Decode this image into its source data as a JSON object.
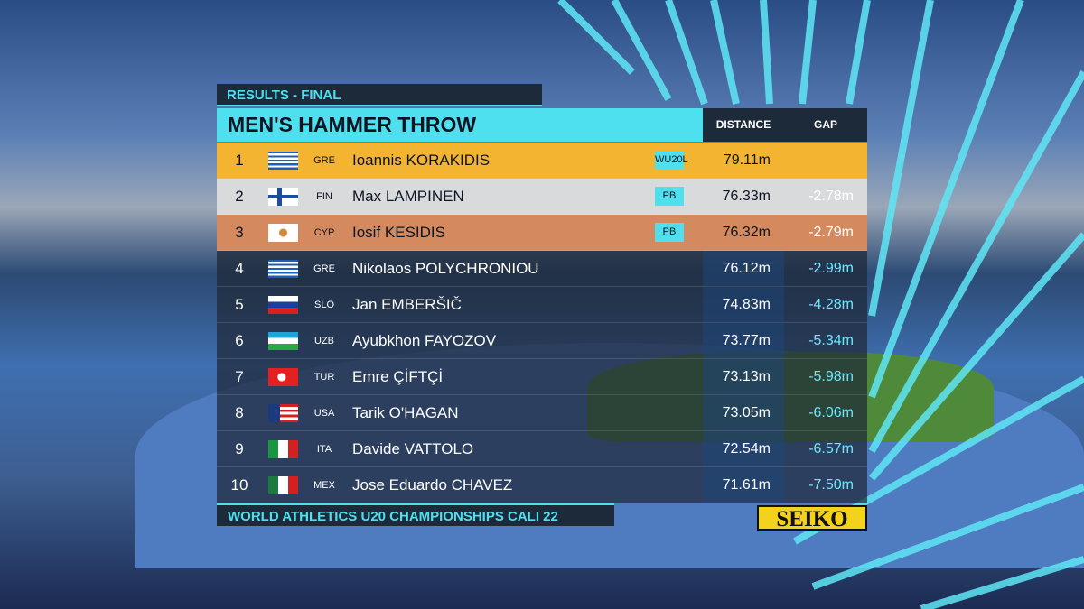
{
  "header": {
    "label": "RESULTS - FINAL",
    "title": "MEN'S HAMMER THROW",
    "columns": [
      "DISTANCE",
      "GAP"
    ]
  },
  "table": {
    "rows": [
      {
        "rank": "1",
        "country": "GRE",
        "name": "Ioannis KORAKIDIS",
        "badge": "WU20L",
        "distance": "79.11m"
      },
      {
        "rank": "2",
        "country": "FIN",
        "name": "Max LAMPINEN",
        "badge": "PB",
        "distance": "76.33m",
        "gap": "-2.78m"
      },
      {
        "rank": "3",
        "country": "CYP",
        "name": "Iosif KESIDIS",
        "badge": "PB",
        "distance": "76.32m",
        "gap": "-2.79m"
      },
      {
        "rank": "4",
        "country": "GRE",
        "name": "Nikolaos POLYCHRONIOU",
        "distance": "76.12m",
        "gap": "-2.99m"
      },
      {
        "rank": "5",
        "country": "SLO",
        "name": "Jan EMBERŠIČ",
        "distance": "74.83m",
        "gap": "-4.28m"
      },
      {
        "rank": "6",
        "country": "UZB",
        "name": "Ayubkhon FAYOZOV",
        "distance": "73.77m",
        "gap": "-5.34m"
      },
      {
        "rank": "7",
        "country": "TUR",
        "name": "Emre ÇİFTÇİ",
        "distance": "73.13m",
        "gap": "-5.98m"
      },
      {
        "rank": "8",
        "country": "USA",
        "name": "Tarik O'HAGAN",
        "distance": "73.05m",
        "gap": "-6.06m"
      },
      {
        "rank": "9",
        "country": "ITA",
        "name": "Davide VATTOLO",
        "distance": "72.54m",
        "gap": "-6.57m"
      },
      {
        "rank": "10",
        "country": "MEX",
        "name": "Jose Eduardo CHAVEZ",
        "distance": "71.61m",
        "gap": "-7.50m"
      }
    ]
  },
  "footer": {
    "event": "WORLD ATHLETICS U20 CHAMPIONSHIPS CALI 22",
    "sponsor": "SEIKO"
  }
}
